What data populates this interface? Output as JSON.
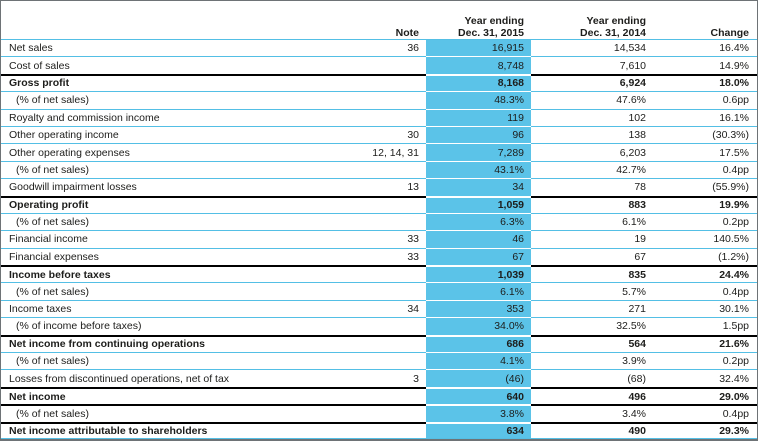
{
  "colors": {
    "highlight_blue": "#5BC3E8",
    "separator_blue": "#54BFE5",
    "thick_line": "#000000",
    "frame_gray": "#6E7376",
    "text": "#1D1D1B"
  },
  "header": {
    "label": "",
    "note": "Note",
    "y2015": [
      "Year ending",
      "Dec. 31, 2015"
    ],
    "y2014": [
      "Year ending",
      "Dec. 31, 2014"
    ],
    "change": "Change"
  },
  "rows": [
    {
      "label": "Net sales",
      "note": "36",
      "y2015": "16,915",
      "y2014": "14,534",
      "change": "16.4%",
      "bold": false,
      "indent": false,
      "border": "thin"
    },
    {
      "label": "Cost of sales",
      "note": "",
      "y2015": "8,748",
      "y2014": "7,610",
      "change": "14.9%",
      "bold": false,
      "indent": false,
      "border": "thin"
    },
    {
      "label": "Gross profit",
      "note": "",
      "y2015": "8,168",
      "y2014": "6,924",
      "change": "18.0%",
      "bold": true,
      "indent": false,
      "border": "thick"
    },
    {
      "label": "(% of net sales)",
      "note": "",
      "y2015": "48.3%",
      "y2014": "47.6%",
      "change": "0.6pp",
      "bold": false,
      "indent": true,
      "border": "thin"
    },
    {
      "label": "Royalty and commission income",
      "note": "",
      "y2015": "119",
      "y2014": "102",
      "change": "16.1%",
      "bold": false,
      "indent": false,
      "border": "thin"
    },
    {
      "label": "Other operating income",
      "note": "30",
      "y2015": "96",
      "y2014": "138",
      "change": "(30.3%)",
      "bold": false,
      "indent": false,
      "border": "thin"
    },
    {
      "label": "Other operating expenses",
      "note": "12, 14, 31",
      "y2015": "7,289",
      "y2014": "6,203",
      "change": "17.5%",
      "bold": false,
      "indent": false,
      "border": "thin"
    },
    {
      "label": "(% of net sales)",
      "note": "",
      "y2015": "43.1%",
      "y2014": "42.7%",
      "change": "0.4pp",
      "bold": false,
      "indent": true,
      "border": "thin"
    },
    {
      "label": "Goodwill impairment losses",
      "note": "13",
      "y2015": "34",
      "y2014": "78",
      "change": "(55.9%)",
      "bold": false,
      "indent": false,
      "border": "thin"
    },
    {
      "label": "Operating profit",
      "note": "",
      "y2015": "1,059",
      "y2014": "883",
      "change": "19.9%",
      "bold": true,
      "indent": false,
      "border": "thick"
    },
    {
      "label": "(% of net sales)",
      "note": "",
      "y2015": "6.3%",
      "y2014": "6.1%",
      "change": "0.2pp",
      "bold": false,
      "indent": true,
      "border": "thin"
    },
    {
      "label": "Financial income",
      "note": "33",
      "y2015": "46",
      "y2014": "19",
      "change": "140.5%",
      "bold": false,
      "indent": false,
      "border": "thin"
    },
    {
      "label": "Financial expenses",
      "note": "33",
      "y2015": "67",
      "y2014": "67",
      "change": "(1.2%)",
      "bold": false,
      "indent": false,
      "border": "thin"
    },
    {
      "label": "Income before taxes",
      "note": "",
      "y2015": "1,039",
      "y2014": "835",
      "change": "24.4%",
      "bold": true,
      "indent": false,
      "border": "thick"
    },
    {
      "label": "(% of net sales)",
      "note": "",
      "y2015": "6.1%",
      "y2014": "5.7%",
      "change": "0.4pp",
      "bold": false,
      "indent": true,
      "border": "thin"
    },
    {
      "label": "Income taxes",
      "note": "34",
      "y2015": "353",
      "y2014": "271",
      "change": "30.1%",
      "bold": false,
      "indent": false,
      "border": "thin"
    },
    {
      "label": "(% of income before taxes)",
      "note": "",
      "y2015": "34.0%",
      "y2014": "32.5%",
      "change": "1.5pp",
      "bold": false,
      "indent": true,
      "border": "thin"
    },
    {
      "label": "Net income from continuing operations",
      "note": "",
      "y2015": "686",
      "y2014": "564",
      "change": "21.6%",
      "bold": true,
      "indent": false,
      "border": "thick"
    },
    {
      "label": "(% of net sales)",
      "note": "",
      "y2015": "4.1%",
      "y2014": "3.9%",
      "change": "0.2pp",
      "bold": false,
      "indent": true,
      "border": "thin"
    },
    {
      "label": "Losses from discontinued operations, net of tax",
      "note": "3",
      "y2015": "(46)",
      "y2014": "(68)",
      "change": "32.4%",
      "bold": false,
      "indent": false,
      "border": "thin"
    },
    {
      "label": "Net income",
      "note": "",
      "y2015": "640",
      "y2014": "496",
      "change": "29.0%",
      "bold": true,
      "indent": false,
      "border": "thick"
    },
    {
      "label": "(% of net sales)",
      "note": "",
      "y2015": "3.8%",
      "y2014": "3.4%",
      "change": "0.4pp",
      "bold": false,
      "indent": true,
      "border": "thick"
    },
    {
      "label": "Net income attributable to shareholders",
      "note": "",
      "y2015": "634",
      "y2014": "490",
      "change": "29.3%",
      "bold": true,
      "indent": false,
      "border": "thick"
    }
  ]
}
